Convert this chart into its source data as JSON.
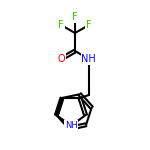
{
  "background_color": "#ffffff",
  "bond_color": "#000000",
  "atom_colors": {
    "F": "#33cc00",
    "O": "#ff0000",
    "N": "#0000ff"
  },
  "figsize": [
    1.5,
    1.5
  ],
  "dpi": 100
}
